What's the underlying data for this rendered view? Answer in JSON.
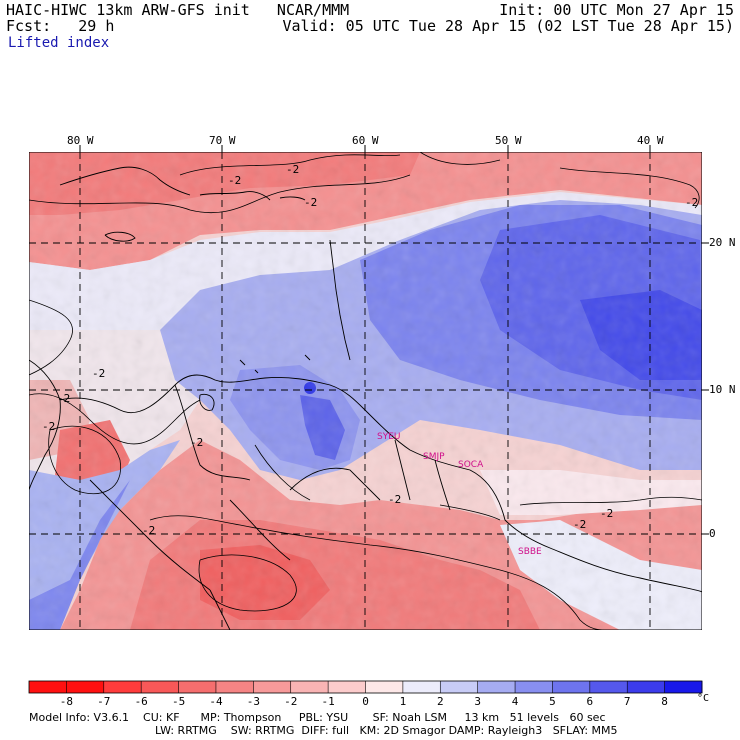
{
  "header": {
    "left_line1": "HAIC-HIWC 13km ARW-GFS init   NCAR/MMM",
    "left_line2": "Fcst:   29 h",
    "left_line3": "Lifted index",
    "right_line1": "Init: 00 UTC Mon 27 Apr 15",
    "right_line2": "Valid: 05 UTC Tue 28 Apr 15 (02 LST Tue 28 Apr 15)"
  },
  "map": {
    "lon_labels": [
      "80 W",
      "70 W",
      "60 W",
      "50 W",
      "40 W"
    ],
    "lat_labels": [
      "20 N",
      "10 N",
      "0"
    ],
    "contour_labels": [
      "-2",
      "-2",
      "-2",
      "-2",
      "-2",
      "-2",
      "-2",
      "-2",
      "-2",
      "-2",
      "-2",
      "-2"
    ],
    "stations": [
      "SYEU",
      "SMJP",
      "SOCA",
      "SBBE"
    ]
  },
  "colorbar": {
    "ticks": [
      "-8",
      "-7",
      "-6",
      "-5",
      "-4",
      "-3",
      "-2",
      "-1",
      "0",
      "1",
      "2",
      "3",
      "4",
      "5",
      "6",
      "7",
      "8"
    ],
    "unit": "°C",
    "colors": [
      "#ff1010",
      "#ff3c3c",
      "#f85858",
      "#f56e6e",
      "#f58484",
      "#f79a9a",
      "#f9b4b4",
      "#fccccc",
      "#fde8e8",
      "#ececfb",
      "#c8ccf6",
      "#a6acf2",
      "#888ff0",
      "#6e74ee",
      "#5558ec",
      "#3c3ceb",
      "#1818ea"
    ]
  },
  "footer": {
    "line1": "Model Info: V3.6.1    CU: KF      MP: Thompson     PBL: YSU       SF: Noah LSM     13 km   51 levels   60 sec",
    "line2": "LW: RRTMG    SW: RRTMG  DIFF: full   KM: 2D Smagor DAMP: Rayleigh3   SFLAY: MM5"
  }
}
